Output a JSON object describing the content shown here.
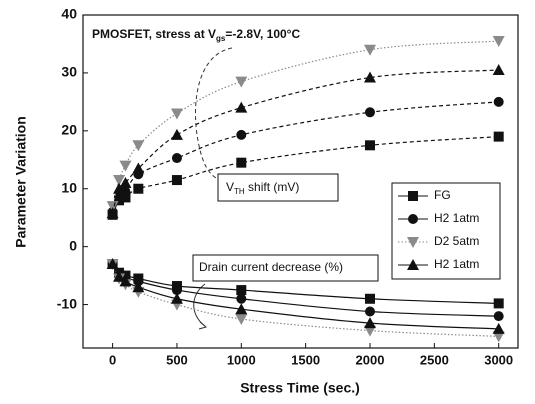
{
  "chart_data": {
    "type": "line",
    "title_parts": [
      "PMOSFET, stress at V",
      "gs",
      "=-2.8V, 100°C"
    ],
    "xlabel": "Stress Time (sec.)",
    "ylabel": "Parameter Variation",
    "annotations": {
      "vth_parts": [
        "V",
        "TH",
        " shift (mV)"
      ],
      "drain": "Drain current decrease (%)"
    },
    "x": [
      0,
      50,
      100,
      200,
      500,
      1000,
      2000,
      3000
    ],
    "xlim": [
      -230,
      3150
    ],
    "xticks": [
      0,
      500,
      1000,
      1500,
      2000,
      2500,
      3000
    ],
    "ylim": [
      -17.5,
      40
    ],
    "yticks": [
      -10,
      0,
      10,
      20,
      30,
      40
    ],
    "series": [
      {
        "name": "FG",
        "marker": "square",
        "color": "#111111",
        "values": [
          5.5,
          8,
          8.5,
          10,
          11.5,
          14.5,
          17.5,
          19
        ],
        "values_drain": [
          -3,
          -4.5,
          -5,
          -5.5,
          -6.8,
          -7.5,
          -9,
          -9.8
        ]
      },
      {
        "name": "H2 1atm",
        "marker": "circle",
        "color": "#111111",
        "values": [
          6,
          8.5,
          9.5,
          12.5,
          15.3,
          19.3,
          23.2,
          25
        ],
        "values_drain": [
          -3,
          -4.8,
          -5.3,
          -6,
          -7.5,
          -9,
          -11.2,
          -12
        ]
      },
      {
        "name": "D2 5atm",
        "marker": "triangle-down",
        "color": "#8a8a8a",
        "values": [
          7,
          11.5,
          14,
          17.5,
          23,
          28.5,
          34,
          35.5
        ],
        "values_drain": [
          -3,
          -5.5,
          -6.5,
          -7.8,
          -10,
          -12.5,
          -14.5,
          -15.5
        ]
      },
      {
        "name": "H2 1atm",
        "marker": "triangle-up",
        "color": "#111111",
        "values": [
          5.8,
          10,
          11,
          13.5,
          19.3,
          24,
          29.2,
          30.5
        ],
        "values_drain": [
          -3,
          -5.2,
          -6,
          -7,
          -9,
          -10.8,
          -13.2,
          -14.2
        ]
      }
    ]
  }
}
